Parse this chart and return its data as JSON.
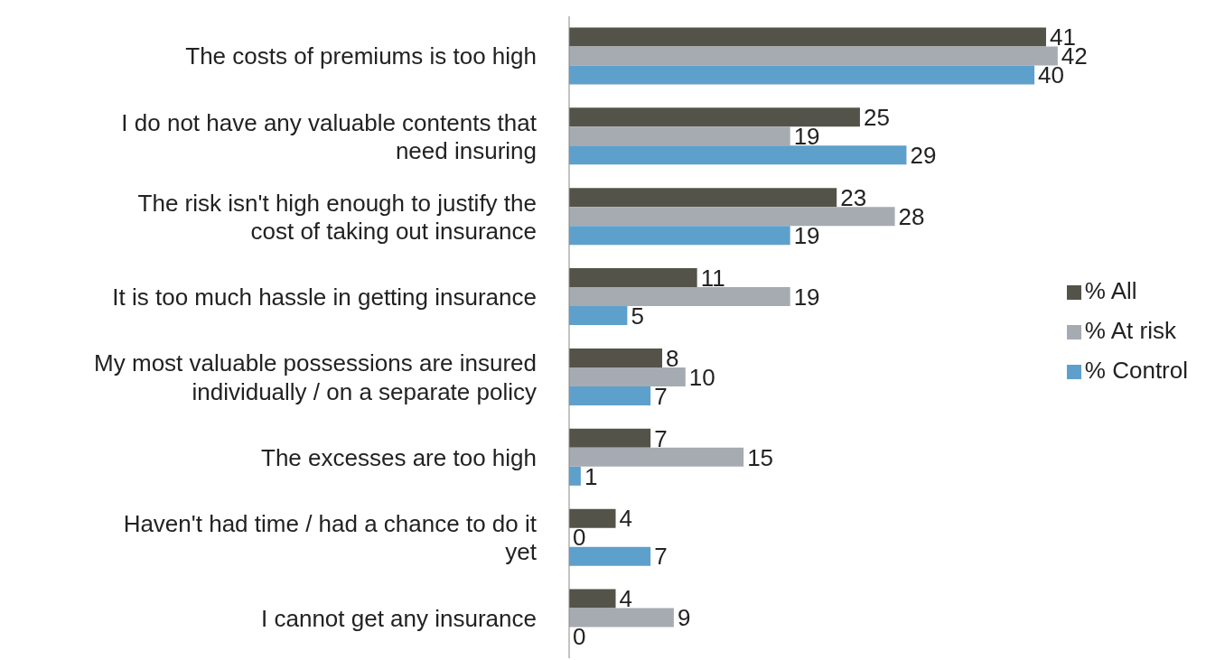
{
  "chart_data": {
    "type": "bar",
    "orientation": "horizontal",
    "data_labels": true,
    "legend": "right",
    "grid": false,
    "categories": [
      "The costs of premiums is too high",
      "I do not have any valuable contents that need insuring",
      "The risk isn't high enough to justify the cost of taking out insurance",
      "It is too much hassle in getting insurance",
      "My most valuable possessions are insured individually / on a  separate policy",
      "The excesses are too high",
      "Haven't had time / had a chance to do it yet",
      "I cannot get any insurance"
    ],
    "series": [
      {
        "name": "% All",
        "color": "#545349",
        "values": [
          41,
          25,
          23,
          11,
          8,
          7,
          4,
          4
        ]
      },
      {
        "name": "% At risk",
        "color": "#a6abb2",
        "values": [
          42,
          19,
          28,
          19,
          10,
          15,
          0,
          9
        ]
      },
      {
        "name": "% Control",
        "color": "#5ea0cc",
        "values": [
          40,
          29,
          19,
          5,
          7,
          1,
          7,
          0
        ]
      }
    ]
  }
}
